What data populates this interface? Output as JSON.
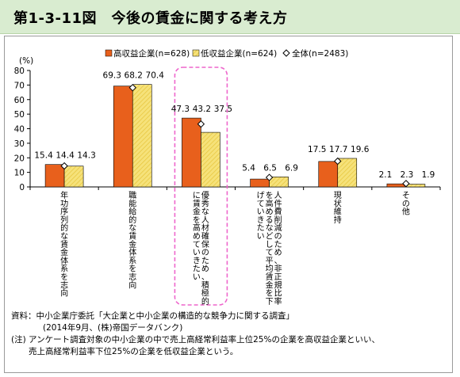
{
  "header": {
    "title": "第1-3-11図　今後の賃金に関する考え方"
  },
  "chart_data": {
    "type": "bar",
    "title": "",
    "ylabel": "(%)",
    "xlabel": "",
    "ylim": [
      0,
      80
    ],
    "yticks": [
      0,
      10,
      20,
      30,
      40,
      50,
      60,
      70,
      80
    ],
    "grid": false,
    "legend_position": "top",
    "categories": [
      "年功序列的な賃金体系を志向",
      "職能給的な賃金体系を志向",
      "優秀な人材確保のため、積極的に賃金を高めていきたい",
      "人件費削減のため、非正規比率を高めるなどして平均賃金を下げていきたい",
      "現状維持",
      "その他"
    ],
    "series": [
      {
        "name": "高収益企業(n=628)",
        "kind": "bar",
        "color": "#e8601c",
        "values": [
          15.4,
          69.3,
          47.3,
          5.4,
          17.5,
          2.1
        ]
      },
      {
        "name": "低収益企業(n=624)",
        "kind": "bar",
        "color": "#f6e27a",
        "values": [
          14.3,
          70.4,
          37.5,
          6.9,
          19.6,
          1.9
        ]
      },
      {
        "name": "全体(n=2483)",
        "kind": "marker",
        "values": [
          14.4,
          68.2,
          43.2,
          6.5,
          17.7,
          2.3
        ]
      }
    ],
    "data_labels": [
      [
        "15.4",
        "14.4",
        "14.3"
      ],
      [
        "69.3",
        "68.2",
        "70.4"
      ],
      [
        "47.3",
        "43.2",
        "37.5"
      ],
      [
        "5.4",
        "6.5",
        "6.9"
      ],
      [
        "17.5",
        "17.7",
        "19.6"
      ],
      [
        "2.1",
        "2.3",
        "1.9"
      ]
    ],
    "highlighted_category": 2
  },
  "notes": {
    "source_line1": "資料：中小企業庁委託「大企業と中小企業の構造的な競争力に関する調査」",
    "source_line2": "(2014年9月、(株)帝国データバンク)",
    "note_line1": "(注) アンケート調査対象の中小企業の中で売上高経常利益率上位25%の企業を高収益企業といい、",
    "note_line2": "売上高経常利益率下位25%の企業を低収益企業という。"
  }
}
